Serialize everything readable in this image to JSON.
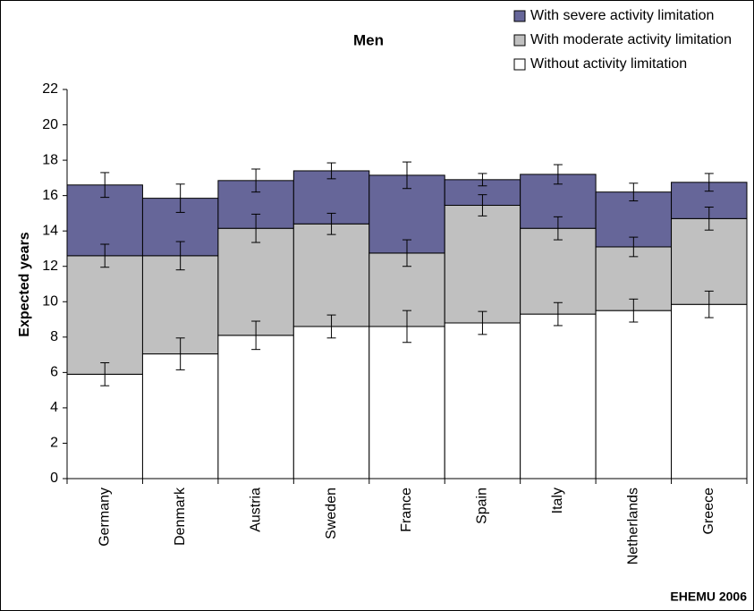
{
  "chart_data": {
    "type": "stacked-bar",
    "title": "Men",
    "y_label": "Expected years",
    "source": "EHEMU 2006",
    "categories": [
      "Germany",
      "Denmark",
      "Austria",
      "Sweden",
      "France",
      "Spain",
      "Italy",
      "Netherlands",
      "Greece"
    ],
    "series": [
      {
        "name": "Without activity limitation",
        "color": "#ffffff",
        "values": [
          5.9,
          7.05,
          8.1,
          8.6,
          8.6,
          8.8,
          9.3,
          9.5,
          9.85
        ],
        "errors": [
          0.65,
          0.9,
          0.8,
          0.65,
          0.9,
          0.65,
          0.65,
          0.65,
          0.75
        ]
      },
      {
        "name": "With moderate activity limitation",
        "color": "#c0c0c0",
        "values": [
          6.7,
          5.55,
          6.05,
          5.8,
          4.15,
          6.65,
          4.85,
          3.6,
          4.85
        ],
        "errors": [
          0.65,
          0.8,
          0.8,
          0.6,
          0.75,
          0.6,
          0.65,
          0.55,
          0.65
        ]
      },
      {
        "name": "With severe activity limitation",
        "color": "#666699",
        "values": [
          4.0,
          3.25,
          2.7,
          3.0,
          4.4,
          1.45,
          3.05,
          3.1,
          2.05
        ],
        "errors": [
          0.7,
          0.8,
          0.65,
          0.45,
          0.75,
          0.35,
          0.55,
          0.5,
          0.5
        ]
      }
    ],
    "ylim": [
      0,
      22
    ],
    "yticks": [
      0,
      2,
      4,
      6,
      8,
      10,
      12,
      14,
      16,
      18,
      20,
      22
    ],
    "grid": false,
    "legend": "top-right"
  }
}
